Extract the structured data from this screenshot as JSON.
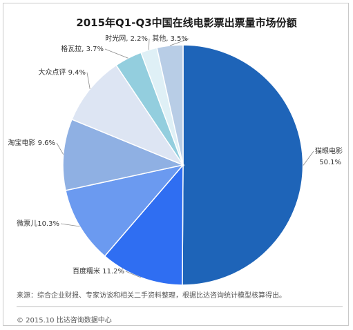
{
  "chart_data": {
    "type": "pie",
    "title": "2015年Q1-Q3中国在线电影票出票量市场份额",
    "unit": "%",
    "slices": [
      {
        "name": "猫眼电影",
        "value": 50.1,
        "label": "猫眼电影\n50.1%",
        "color": "#1e64b8"
      },
      {
        "name": "百度糯米",
        "value": 11.2,
        "label": "百度糯米 11.2%",
        "color": "#2f6ef2"
      },
      {
        "name": "微票儿",
        "value": 10.3,
        "label": "微票儿10.3%",
        "color": "#6b9af0"
      },
      {
        "name": "淘宝电影",
        "value": 9.6,
        "label": "淘宝电影 9.6%",
        "color": "#8fb0e3"
      },
      {
        "name": "大众点评",
        "value": 9.4,
        "label": "大众点评 9.4%",
        "color": "#dde5f3"
      },
      {
        "name": "格瓦拉",
        "value": 3.7,
        "label": "格瓦拉, 3.7%",
        "color": "#93cede"
      },
      {
        "name": "时光网",
        "value": 2.2,
        "label": "时光网, 2.2%",
        "color": "#dff0f6"
      },
      {
        "name": "其他",
        "value": 3.5,
        "label": "其他, 3.5%",
        "color": "#b8cde6"
      }
    ]
  },
  "footer": {
    "source": "来源：综合企业财报、专家访谈和相关二手资料整理，根据比达咨询统计模型核算得出。",
    "copyright": "© 2015.10  比达咨询数据中心"
  }
}
